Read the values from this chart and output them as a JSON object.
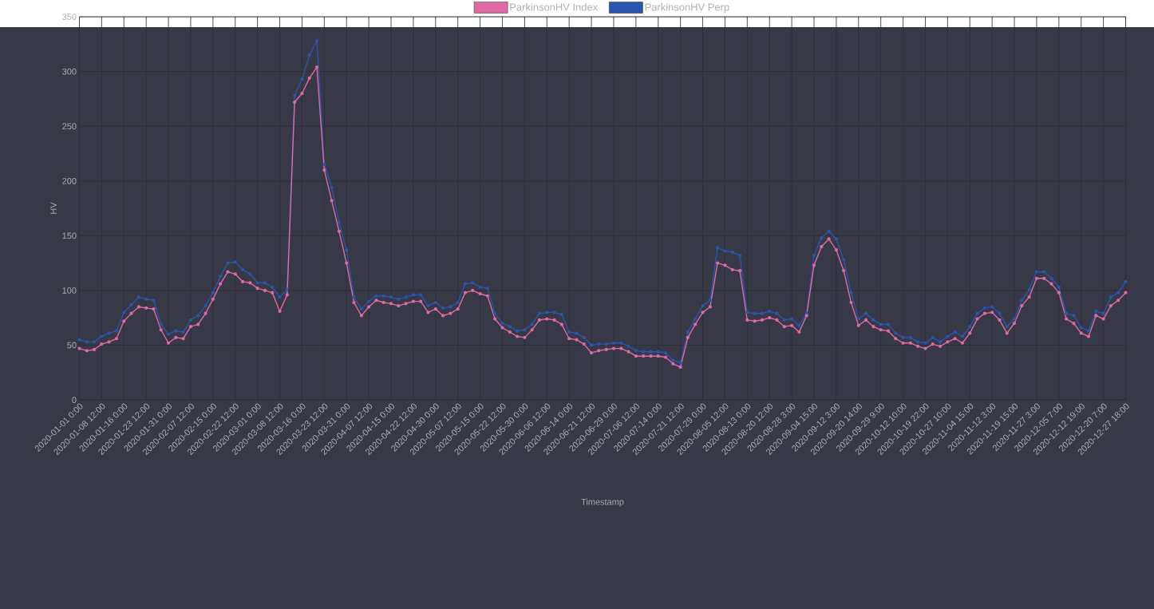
{
  "chart_data": {
    "type": "line",
    "xlabel": "Timestamp",
    "ylabel": "HV",
    "categories": [
      "2020-01-01 0:00",
      null,
      null,
      "2020-01-08 12:00",
      null,
      null,
      "2020-01-16 0:00",
      null,
      null,
      "2020-01-23 12:00",
      null,
      null,
      "2020-01-31 0:00",
      null,
      null,
      "2020-02-07 12:00",
      null,
      null,
      "2020-02-15 0:00",
      null,
      null,
      "2020-02-22 12:00",
      null,
      null,
      "2020-03-01 0:00",
      null,
      null,
      "2020-03-08 12:00",
      null,
      null,
      "2020-03-16 0:00",
      null,
      null,
      "2020-03-23 12:00",
      null,
      null,
      "2020-03-31 0:00",
      null,
      null,
      "2020-04-07 12:00",
      null,
      null,
      "2020-04-15 0:00",
      null,
      null,
      "2020-04-22 12:00",
      null,
      null,
      "2020-04-30 0:00",
      null,
      null,
      "2020-05-07 12:00",
      null,
      null,
      "2020-05-15 0:00",
      null,
      null,
      "2020-05-22 12:00",
      null,
      null,
      "2020-05-30 0:00",
      null,
      null,
      "2020-06-06 12:00",
      null,
      null,
      "2020-06-14 0:00",
      null,
      null,
      "2020-06-21 12:00",
      null,
      null,
      "2020-06-29 0:00",
      null,
      null,
      "2020-07-06 12:00",
      null,
      null,
      "2020-07-14 0:00",
      null,
      null,
      "2020-07-21 12:00",
      null,
      null,
      "2020-07-29 0:00",
      null,
      null,
      "2020-08-05 12:00",
      null,
      null,
      "2020-08-13 0:00",
      null,
      null,
      "2020-08-20 12:00",
      null,
      null,
      "2020-08-28 3:00",
      null,
      null,
      "2020-09-04 15:00",
      null,
      null,
      "2020-09-12 3:00",
      null,
      null,
      "2020-09-20 14:00",
      null,
      null,
      "2020-09-29 9:00",
      null,
      null,
      "2020-10-12 10:00",
      null,
      null,
      "2020-10-19 22:00",
      null,
      null,
      "2020-10-27 10:00",
      null,
      null,
      "2020-11-04 15:00",
      null,
      null,
      "2020-11-12 3:00",
      null,
      null,
      "2020-11-19 15:00",
      null,
      null,
      "2020-11-27 3:00",
      null,
      null,
      "2020-12-05 7:00",
      null,
      null,
      "2020-12-12 19:00",
      null,
      null,
      "2020-12-20 7:00",
      null,
      null,
      "2020-12-27 18:00"
    ],
    "series": [
      {
        "name": "ParkinsonHV Index",
        "color": "#e06aa4",
        "values": [
          47,
          45,
          46,
          51,
          53,
          56,
          72,
          79,
          85,
          84,
          83,
          64,
          52,
          57,
          56,
          67,
          69,
          79,
          92,
          106,
          117,
          115,
          108,
          107,
          102,
          100,
          98,
          81,
          96,
          272,
          280,
          294,
          304,
          210,
          182,
          154,
          125,
          89,
          77,
          85,
          91,
          89,
          88,
          86,
          88,
          90,
          90,
          80,
          83,
          77,
          79,
          83,
          98,
          100,
          97,
          95,
          74,
          66,
          62,
          58,
          57,
          64,
          73,
          74,
          73,
          69,
          56,
          55,
          51,
          43,
          45,
          46,
          47,
          47,
          44,
          40,
          40,
          40,
          40,
          39,
          33,
          30,
          57,
          69,
          80,
          85,
          125,
          123,
          119,
          118,
          73,
          72,
          73,
          75,
          73,
          67,
          68,
          62,
          77,
          123,
          140,
          147,
          137,
          118,
          89,
          68,
          73,
          67,
          64,
          63,
          56,
          52,
          52,
          49,
          47,
          51,
          49,
          53,
          56,
          52,
          61,
          74,
          79,
          80,
          73,
          61,
          70,
          86,
          94,
          111,
          111,
          106,
          98,
          74,
          70,
          61,
          58,
          77,
          74,
          86,
          91,
          98
        ]
      },
      {
        "name": "ParkinsonHV Perp",
        "color": "#2a55b0",
        "values": [
          55,
          53,
          53,
          58,
          61,
          63,
          80,
          87,
          94,
          92,
          91,
          69,
          60,
          63,
          62,
          73,
          77,
          86,
          98,
          113,
          125,
          126,
          119,
          115,
          107,
          107,
          103,
          94,
          101,
          278,
          293,
          315,
          328,
          215,
          194,
          162,
          137,
          94,
          83,
          90,
          95,
          95,
          94,
          92,
          94,
          96,
          96,
          86,
          89,
          84,
          85,
          89,
          106,
          107,
          103,
          102,
          79,
          70,
          67,
          63,
          64,
          69,
          79,
          80,
          80,
          78,
          62,
          61,
          57,
          50,
          51,
          51,
          52,
          52,
          49,
          45,
          44,
          44,
          44,
          43,
          36,
          34,
          62,
          74,
          86,
          91,
          139,
          136,
          135,
          132,
          80,
          79,
          79,
          81,
          79,
          73,
          74,
          68,
          79,
          132,
          148,
          154,
          147,
          128,
          98,
          74,
          79,
          73,
          69,
          69,
          61,
          57,
          57,
          53,
          52,
          57,
          53,
          58,
          62,
          58,
          67,
          79,
          84,
          85,
          79,
          67,
          74,
          91,
          101,
          117,
          117,
          111,
          103,
          79,
          77,
          66,
          63,
          81,
          79,
          94,
          98,
          108
        ]
      }
    ],
    "ylim": [
      0,
      350
    ],
    "yticks": [
      0,
      50,
      100,
      150,
      200,
      250,
      300,
      350
    ],
    "grid": true,
    "legend": "top",
    "marker": "circle",
    "line_style": "solid"
  }
}
